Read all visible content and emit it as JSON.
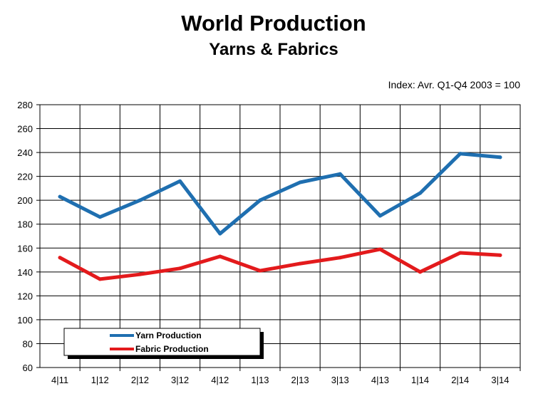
{
  "chart_data": {
    "type": "line",
    "title": "World Production",
    "subtitle": "Yarns & Fabrics",
    "annotation": "Index: Avr. Q1-Q4 2003 = 100",
    "xlabel": "",
    "ylabel": "",
    "categories": [
      "4|11",
      "1|12",
      "2|12",
      "3|12",
      "4|12",
      "1|13",
      "2|13",
      "3|13",
      "4|13",
      "1|14",
      "2|14",
      "3|14"
    ],
    "ylim": [
      60,
      280
    ],
    "yticks": [
      60,
      80,
      100,
      120,
      140,
      160,
      180,
      200,
      220,
      240,
      260,
      280
    ],
    "grid": true,
    "legend_position": "bottom-left",
    "series": [
      {
        "name": "Yarn Production",
        "color": "#1f6fb0",
        "values": [
          203,
          186,
          200,
          216,
          172,
          200,
          215,
          222,
          187,
          206,
          239,
          236
        ]
      },
      {
        "name": "Fabric Production",
        "color": "#e31a1c",
        "values": [
          152,
          134,
          138,
          143,
          153,
          141,
          147,
          152,
          159,
          140,
          156,
          154
        ]
      }
    ]
  }
}
